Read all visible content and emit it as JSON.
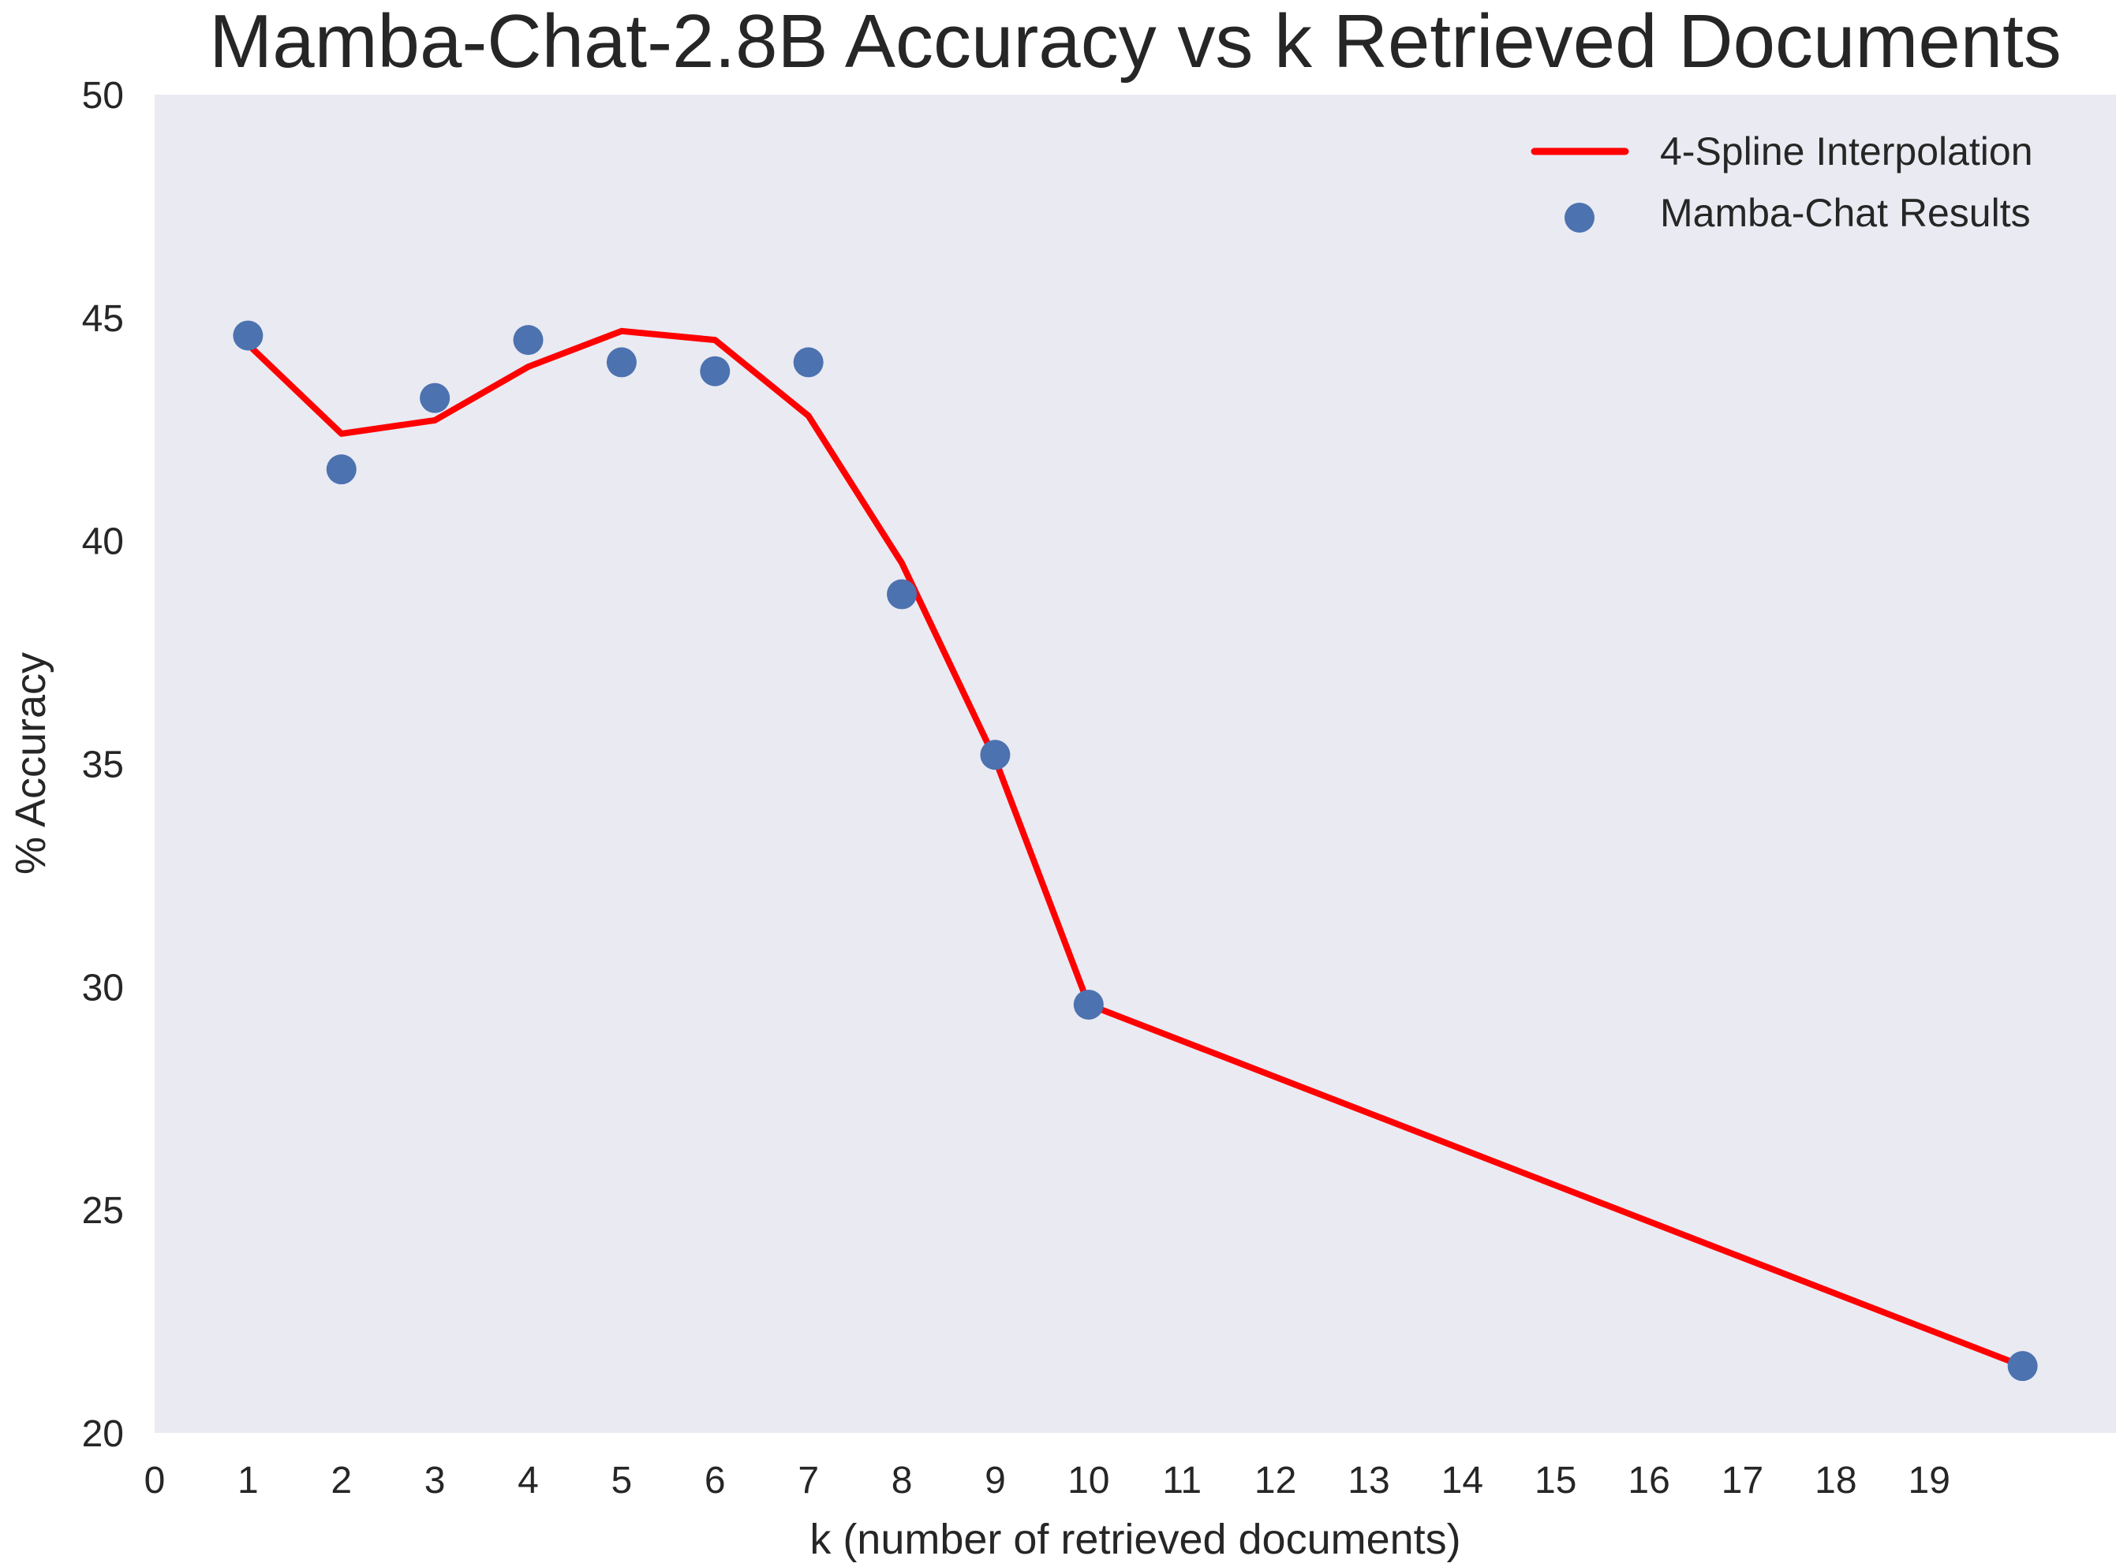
{
  "chart_data": {
    "type": "line",
    "title": "Mamba-Chat-2.8B Accuracy vs k Retrieved Documents",
    "xlabel": "k (number of retrieved documents)",
    "ylabel": "% Accuracy",
    "xlim": [
      0,
      21
    ],
    "ylim": [
      20,
      50
    ],
    "xticks": [
      0,
      1,
      2,
      3,
      4,
      5,
      6,
      7,
      8,
      9,
      10,
      11,
      12,
      13,
      14,
      15,
      16,
      17,
      18,
      19
    ],
    "yticks": [
      20,
      25,
      30,
      35,
      40,
      45,
      50
    ],
    "grid": false,
    "legend_position": "top-right",
    "series": [
      {
        "name": "4-Spline Interpolation",
        "kind": "line",
        "color": "#FF0000",
        "x": [
          1,
          2,
          3,
          4,
          5,
          6,
          7,
          8,
          9,
          10,
          20
        ],
        "y": [
          44.4,
          42.4,
          42.7,
          43.9,
          44.7,
          44.5,
          42.8,
          39.5,
          35.1,
          29.6,
          21.5
        ]
      },
      {
        "name": "Mamba-Chat Results",
        "kind": "scatter",
        "color": "#4C72B0",
        "x": [
          1,
          2,
          3,
          4,
          5,
          6,
          7,
          8,
          9,
          10,
          20
        ],
        "y": [
          44.6,
          41.6,
          43.2,
          44.5,
          44.0,
          43.8,
          44.0,
          38.8,
          35.2,
          29.6,
          21.5
        ]
      }
    ]
  }
}
